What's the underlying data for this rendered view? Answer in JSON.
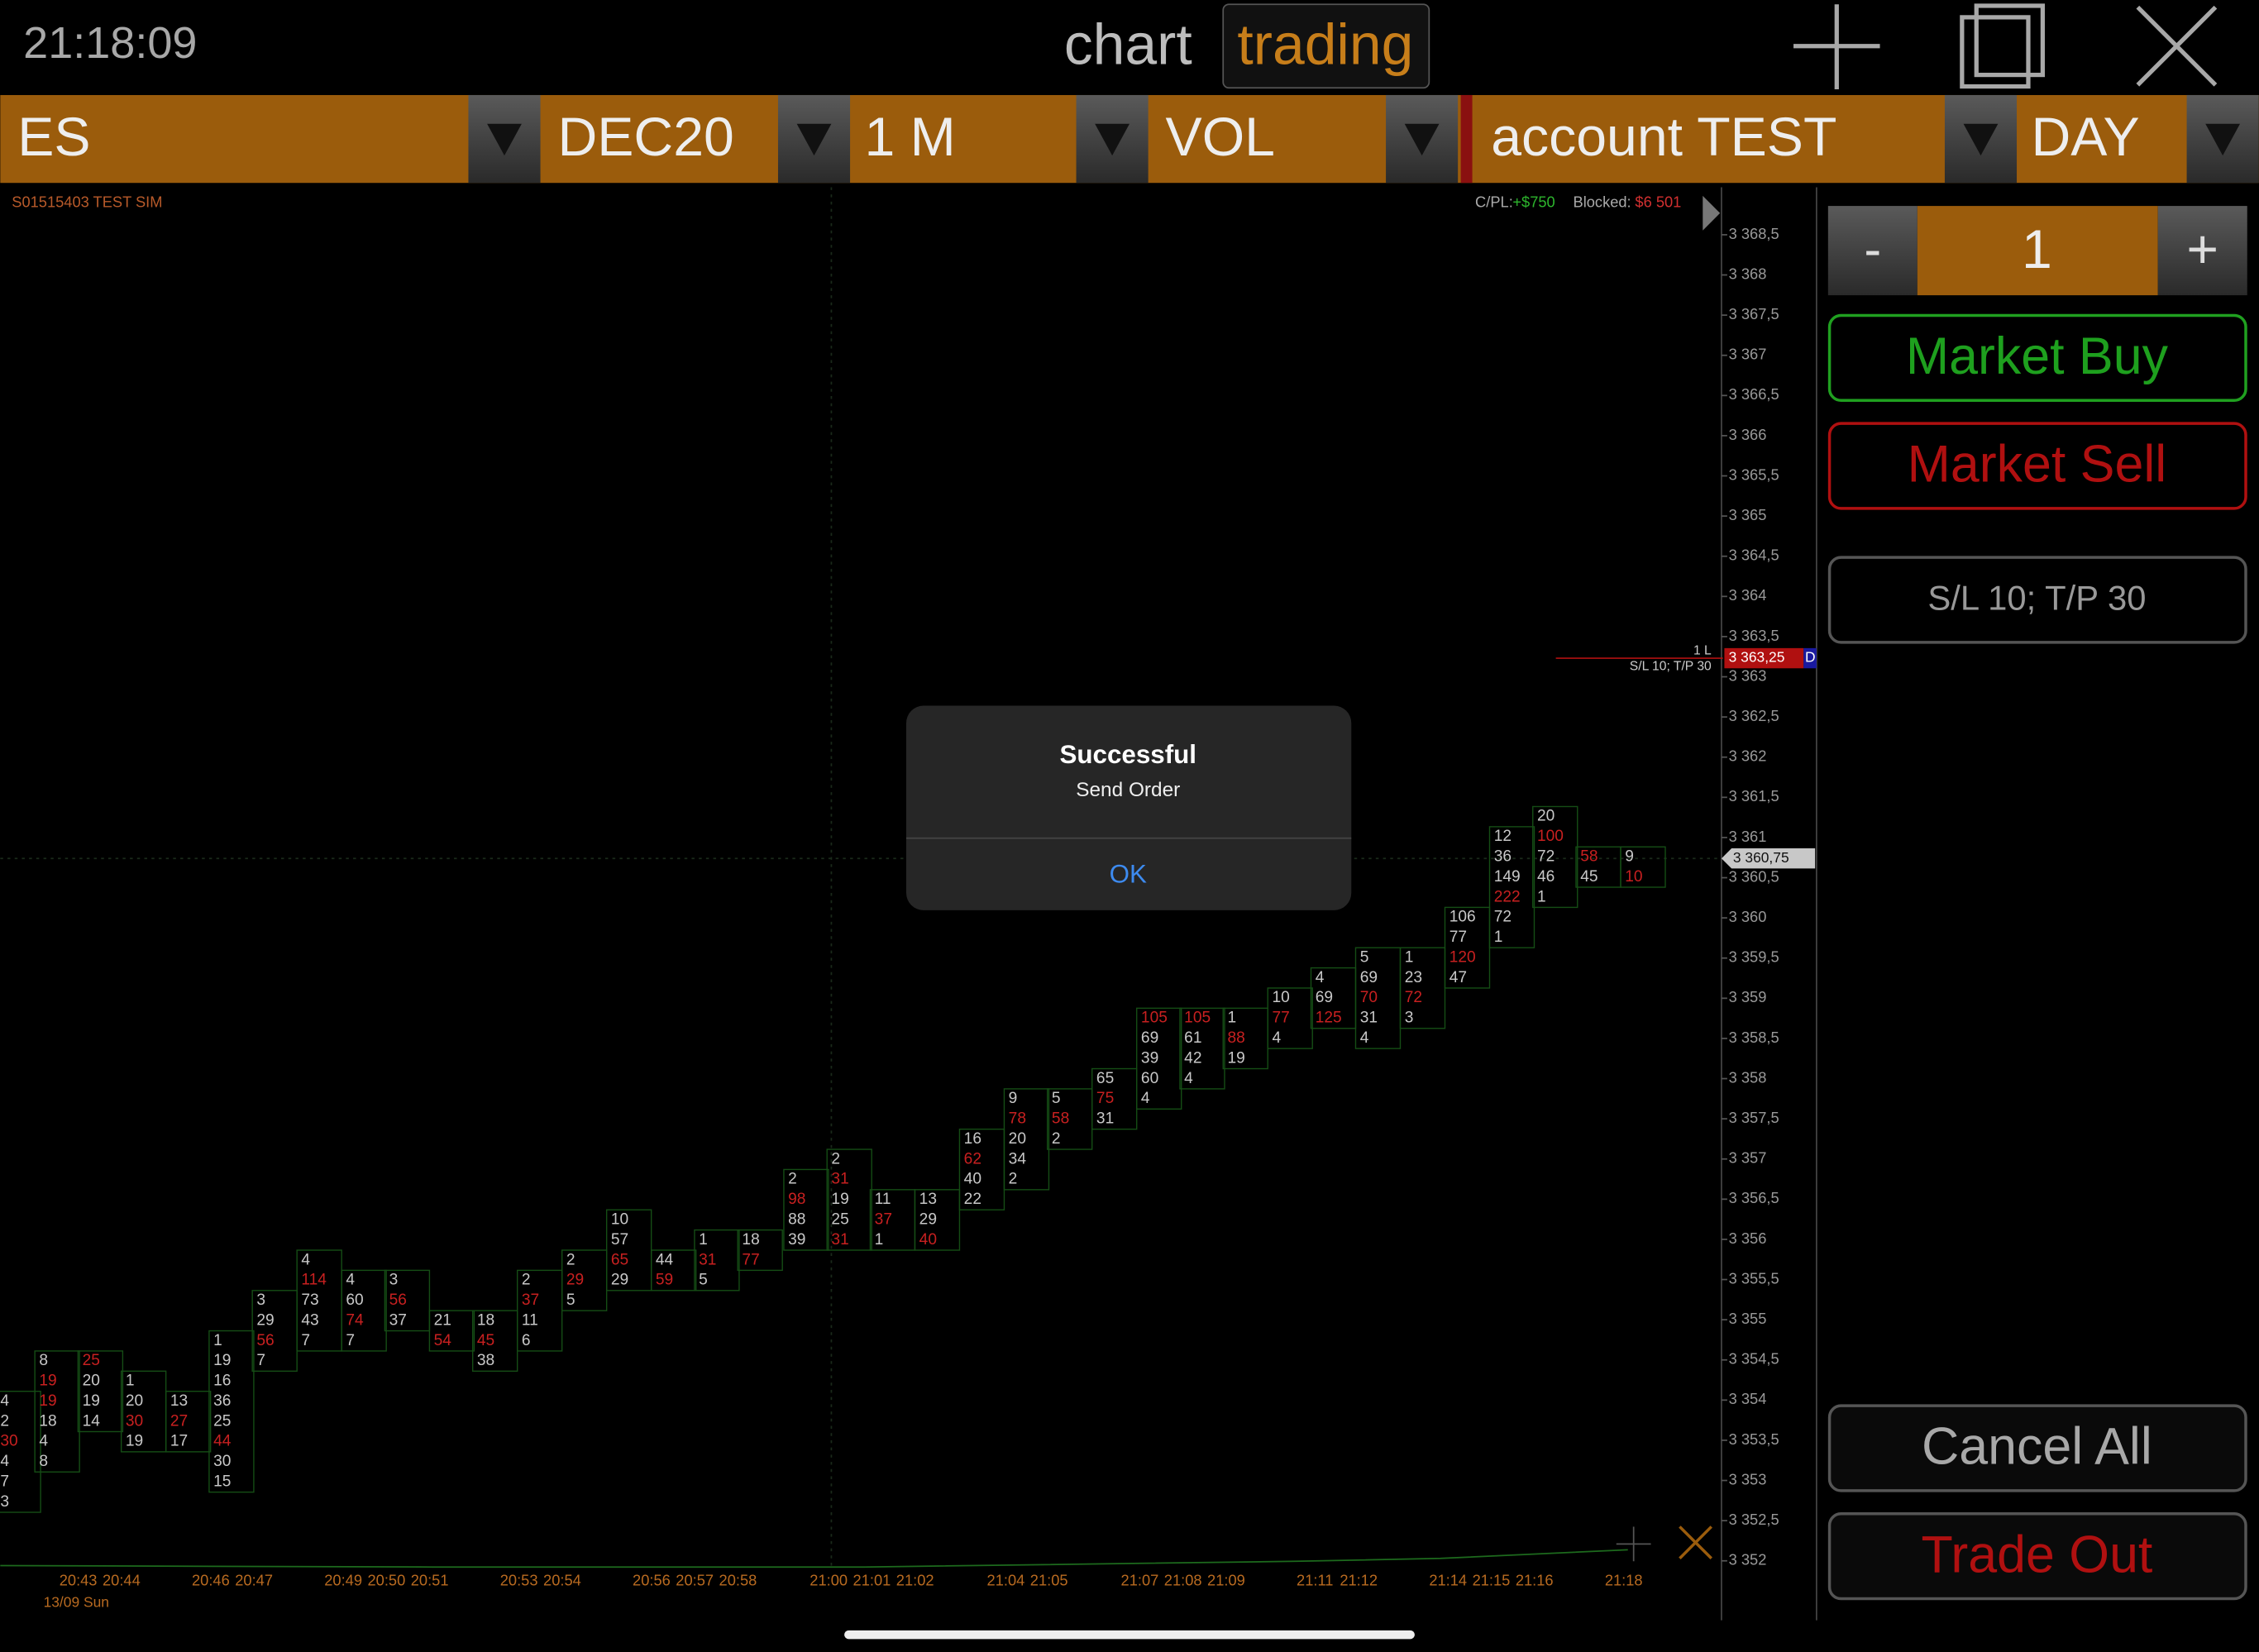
{
  "status_bar": {
    "time": "21:18:09"
  },
  "header": {
    "tabs": [
      "chart",
      "trading"
    ]
  },
  "toolbar": [
    "ES",
    "DEC20",
    "1 M",
    "VOL",
    "account TEST",
    "DAY"
  ],
  "chart": {
    "account": "S01515403 TEST SIM",
    "cpl_label": "C/PL:",
    "cpl_value": "+$750",
    "blocked_label": "Blocked:",
    "blocked_value": "$6 501",
    "order_qty": "1 L",
    "order_brackets": "S/L 10; T/P 30",
    "order_price": "3 363,25",
    "order_tag": "D",
    "last_price": "3 360,75",
    "price_axis": [
      "3 368,5",
      "3 368",
      "3 367,5",
      "3 367",
      "3 366,5",
      "3 366",
      "3 365,5",
      "3 365",
      "3 364,5",
      "3 364",
      "3 363,5",
      "3 363",
      "3 362,5",
      "3 362",
      "3 361,5",
      "3 361",
      "3 360,5",
      "3 360",
      "3 359,5",
      "3 359",
      "3 358,5",
      "3 358",
      "3 357,5",
      "3 357",
      "3 356,5",
      "3 356",
      "3 355,5",
      "3 355",
      "3 354,5",
      "3 354",
      "3 353,5",
      "3 353",
      "3 352,5",
      "3 352"
    ],
    "time_axis": [
      "20:43",
      "20:44",
      "20:46",
      "20:47",
      "20:49",
      "20:50",
      "20:51",
      "20:53",
      "20:54",
      "20:56",
      "20:57",
      "20:58",
      "21:00",
      "21:01",
      "21:02",
      "21:04",
      "21:05",
      "21:07",
      "21:08",
      "21:09",
      "21:11",
      "21:12",
      "21:14",
      "21:15",
      "21:16",
      "21:18"
    ],
    "date": "13/09 Sun",
    "footprint": [
      [
        4,
        2,
        30,
        4,
        7,
        3
      ],
      [
        8,
        19,
        19,
        18,
        4,
        8
      ],
      [
        25,
        20,
        19,
        14
      ],
      [
        1,
        20,
        30,
        19
      ],
      [
        13,
        27,
        17
      ],
      [
        1,
        19,
        16,
        36,
        25,
        44,
        30,
        15
      ],
      [
        3,
        29,
        56,
        7
      ],
      [
        4,
        114,
        73,
        43,
        7
      ],
      [
        4,
        60,
        74,
        7
      ],
      [
        3,
        56,
        37
      ],
      [
        21,
        54
      ],
      [
        18,
        45,
        38
      ],
      [
        2,
        37,
        11,
        6
      ],
      [
        2,
        29,
        5
      ],
      [
        10,
        57,
        65,
        29
      ],
      [
        44,
        59
      ],
      [
        1,
        31,
        5
      ],
      [
        18,
        77
      ],
      [
        2,
        98,
        88,
        39
      ],
      [
        2,
        31,
        19,
        25,
        31
      ],
      [
        11,
        37,
        1
      ],
      [
        13,
        29,
        40
      ],
      [
        16,
        62,
        40,
        22
      ],
      [
        9,
        78,
        20,
        34,
        2
      ],
      [
        5,
        58,
        2
      ],
      [
        65,
        75,
        31
      ],
      [
        105,
        69,
        39,
        60,
        4
      ],
      [
        105,
        61,
        42,
        4
      ],
      [
        1,
        88,
        19
      ],
      [
        10,
        77,
        4
      ],
      [
        4,
        69,
        125
      ],
      [
        5,
        69,
        70,
        31,
        4
      ],
      [
        1,
        23,
        72,
        3
      ],
      [
        106,
        77,
        120,
        47
      ],
      [
        12,
        36,
        149,
        222,
        72,
        1
      ],
      [
        20,
        100,
        72,
        46,
        1
      ],
      [
        58,
        45
      ],
      [
        9,
        10
      ]
    ]
  },
  "panel": {
    "minus": "-",
    "quantity": 1,
    "plus": "+",
    "buy": "Market Buy",
    "sell": "Market Sell",
    "brackets": "S/L 10; T/P 30",
    "cancel": "Cancel All",
    "trade_out": "Trade Out"
  },
  "dialog": {
    "title": "Successful",
    "message": "Send Order",
    "button": "OK"
  }
}
